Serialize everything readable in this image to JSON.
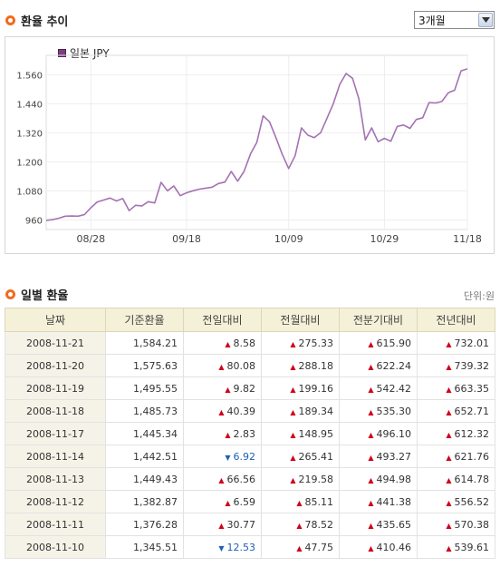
{
  "trend": {
    "title": "환율 추이",
    "period_select": "3개월",
    "legend": "일본 JPY"
  },
  "daily": {
    "title": "일별 환율",
    "unit": "단위:원",
    "columns": [
      "날짜",
      "기준환율",
      "전일대비",
      "전월대비",
      "전분기대비",
      "전년대비"
    ],
    "rows": [
      {
        "date": "2008-11-21",
        "base": "1,584.21",
        "d_day": "8.58",
        "d_day_dir": "up",
        "d_month": "275.33",
        "d_month_dir": "up",
        "d_quarter": "615.90",
        "d_quarter_dir": "up",
        "d_year": "732.01",
        "d_year_dir": "up"
      },
      {
        "date": "2008-11-20",
        "base": "1,575.63",
        "d_day": "80.08",
        "d_day_dir": "up",
        "d_month": "288.18",
        "d_month_dir": "up",
        "d_quarter": "622.24",
        "d_quarter_dir": "up",
        "d_year": "739.32",
        "d_year_dir": "up"
      },
      {
        "date": "2008-11-19",
        "base": "1,495.55",
        "d_day": "9.82",
        "d_day_dir": "up",
        "d_month": "199.16",
        "d_month_dir": "up",
        "d_quarter": "542.42",
        "d_quarter_dir": "up",
        "d_year": "663.35",
        "d_year_dir": "up"
      },
      {
        "date": "2008-11-18",
        "base": "1,485.73",
        "d_day": "40.39",
        "d_day_dir": "up",
        "d_month": "189.34",
        "d_month_dir": "up",
        "d_quarter": "535.30",
        "d_quarter_dir": "up",
        "d_year": "652.71",
        "d_year_dir": "up"
      },
      {
        "date": "2008-11-17",
        "base": "1,445.34",
        "d_day": "2.83",
        "d_day_dir": "up",
        "d_month": "148.95",
        "d_month_dir": "up",
        "d_quarter": "496.10",
        "d_quarter_dir": "up",
        "d_year": "612.32",
        "d_year_dir": "up"
      },
      {
        "date": "2008-11-14",
        "base": "1,442.51",
        "d_day": "6.92",
        "d_day_dir": "down",
        "d_month": "265.41",
        "d_month_dir": "up",
        "d_quarter": "493.27",
        "d_quarter_dir": "up",
        "d_year": "621.76",
        "d_year_dir": "up"
      },
      {
        "date": "2008-11-13",
        "base": "1,449.43",
        "d_day": "66.56",
        "d_day_dir": "up",
        "d_month": "219.58",
        "d_month_dir": "up",
        "d_quarter": "494.98",
        "d_quarter_dir": "up",
        "d_year": "614.78",
        "d_year_dir": "up"
      },
      {
        "date": "2008-11-12",
        "base": "1,382.87",
        "d_day": "6.59",
        "d_day_dir": "up",
        "d_month": "85.11",
        "d_month_dir": "up",
        "d_quarter": "441.38",
        "d_quarter_dir": "up",
        "d_year": "556.52",
        "d_year_dir": "up"
      },
      {
        "date": "2008-11-11",
        "base": "1,376.28",
        "d_day": "30.77",
        "d_day_dir": "up",
        "d_month": "78.52",
        "d_month_dir": "up",
        "d_quarter": "435.65",
        "d_quarter_dir": "up",
        "d_year": "570.38",
        "d_year_dir": "up"
      },
      {
        "date": "2008-11-10",
        "base": "1,345.51",
        "d_day": "12.53",
        "d_day_dir": "down",
        "d_month": "47.75",
        "d_month_dir": "up",
        "d_quarter": "410.46",
        "d_quarter_dir": "up",
        "d_year": "539.61",
        "d_year_dir": "up"
      }
    ]
  },
  "colors": {
    "accent": "#f26b1d",
    "line": "#a472b3",
    "up": "#d0021b",
    "down": "#1f5fb8"
  },
  "icons": {
    "section_bullet": "orange-circle-bullet-icon",
    "select_arrow": "chevron-down-icon",
    "up": "triangle-up-icon",
    "down": "triangle-down-icon"
  },
  "chart_data": {
    "type": "line",
    "series": [
      {
        "name": "일본 JPY",
        "values": [
          958,
          961,
          967,
          975,
          976,
          975,
          982,
          1010,
          1034,
          1042,
          1050,
          1038,
          1048,
          998,
          1020,
          1018,
          1035,
          1030,
          1115,
          1080,
          1100,
          1060,
          1072,
          1080,
          1087,
          1091,
          1095,
          1110,
          1116,
          1160,
          1120,
          1160,
          1232,
          1280,
          1390,
          1365,
          1300,
          1230,
          1172,
          1225,
          1340,
          1310,
          1300,
          1320,
          1380,
          1440,
          1520,
          1565,
          1545,
          1460,
          1290,
          1340,
          1283,
          1297,
          1285,
          1346,
          1352,
          1338,
          1375,
          1382,
          1445,
          1443,
          1449,
          1485,
          1496,
          1576,
          1584
        ]
      }
    ],
    "x_tick_labels": [
      "08/28",
      "09/18",
      "10/09",
      "10/29",
      "11/18"
    ],
    "x_tick_index": [
      7,
      22,
      38,
      53,
      66
    ],
    "y_ticks": [
      960,
      1080,
      1200,
      1320,
      1440,
      1560
    ],
    "y_tick_labels": [
      "960",
      "1.080",
      "1.200",
      "1.320",
      "1.440",
      "1.560"
    ],
    "ylim": [
      920,
      1640
    ],
    "grid": true,
    "legend_position": "top-left"
  }
}
